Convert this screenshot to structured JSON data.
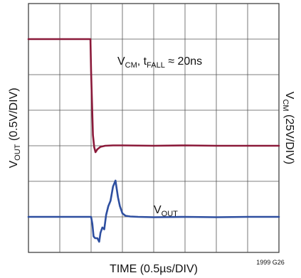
{
  "chart_data": {
    "type": "line",
    "xlabel": "TIME (0.5µs/DIV)",
    "ylabel_left": {
      "main": "V",
      "sub": "OUT",
      "rest": " (0.5V/DIV)"
    },
    "ylabel_right": {
      "main": "V",
      "sub": "CM",
      "rest": " (25V/DIV)"
    },
    "figure_id": "1999 G26",
    "grid": true,
    "x_divisions": 8,
    "y_divisions": 7,
    "xlim": [
      0,
      8
    ],
    "ylim": [
      0,
      7
    ],
    "annotations": [
      {
        "parts": [
          {
            "t": "V"
          },
          {
            "t": "CM",
            "sub": true
          },
          {
            "t": ", t"
          },
          {
            "t": "FALL",
            "sub": true
          },
          {
            "t": " ≈ 20ns"
          }
        ]
      },
      {
        "parts": [
          {
            "t": "V"
          },
          {
            "t": "OUT",
            "sub": true
          }
        ]
      }
    ],
    "series": [
      {
        "name": "VCM",
        "color": "#8b1a3a",
        "x": [
          0,
          1.0,
          1.98,
          2.0,
          2.03,
          2.06,
          2.1,
          2.14,
          2.2,
          2.3,
          2.45,
          2.7,
          3.0,
          4.0,
          5.0,
          6.0,
          7.0,
          8.0
        ],
        "y": [
          6.0,
          6.0,
          6.0,
          5.1,
          4.2,
          3.3,
          2.96,
          2.82,
          2.9,
          2.97,
          3.0,
          3.01,
          3.01,
          3.0,
          3.01,
          3.0,
          3.0,
          3.0
        ]
      },
      {
        "name": "VOUT",
        "color": "#2e4fa0",
        "x": [
          0,
          1.0,
          2.0,
          2.04,
          2.08,
          2.13,
          2.2,
          2.26,
          2.3,
          2.36,
          2.42,
          2.48,
          2.55,
          2.62,
          2.7,
          2.78,
          2.86,
          2.92,
          3.0,
          3.1,
          3.25,
          3.5,
          4.0,
          5.0,
          6.0,
          7.0,
          8.0
        ],
        "y": [
          1.0,
          1.0,
          1.0,
          0.8,
          0.45,
          0.4,
          0.4,
          0.3,
          0.55,
          0.7,
          0.65,
          1.05,
          1.3,
          1.45,
          1.85,
          2.02,
          1.55,
          1.3,
          1.1,
          1.03,
          1.01,
          1.0,
          0.99,
          1.0,
          0.99,
          1.0,
          1.0
        ]
      }
    ]
  }
}
